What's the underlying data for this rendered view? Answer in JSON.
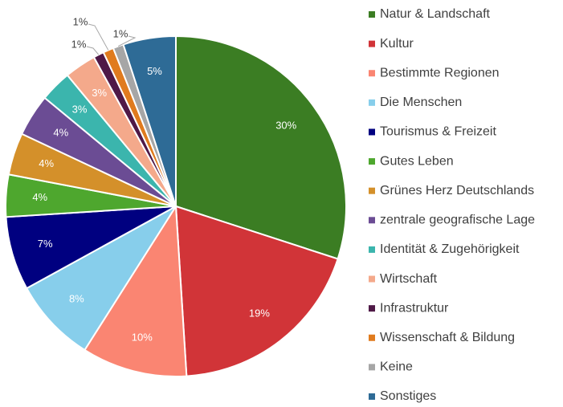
{
  "chart_data": {
    "type": "pie",
    "categories": [
      "Natur & Landschaft",
      "Kultur",
      "Bestimmte Regionen",
      "Die Menschen",
      "Tourismus & Freizeit",
      "Gutes Leben",
      "Grünes Herz Deutschlands",
      "zentrale geografische Lage",
      "Identität & Zugehörigkeit",
      "Wirtschaft",
      "Infrastruktur",
      "Wissenschaft & Bildung",
      "Keine",
      "Sonstiges"
    ],
    "values": [
      30,
      19,
      10,
      8,
      7,
      4,
      4,
      4,
      3,
      3,
      1,
      1,
      1,
      5
    ],
    "value_labels": [
      "30%",
      "19%",
      "10%",
      "8%",
      "7%",
      "4%",
      "4%",
      "4%",
      "3%",
      "3%",
      "1%",
      "1%",
      "1%",
      "5%"
    ],
    "colors": [
      "#3b7d23",
      "#d13438",
      "#fa8572",
      "#87ceeb",
      "#000080",
      "#4ea72e",
      "#d4902a",
      "#6b4c94",
      "#3bb5ad",
      "#f4a98b",
      "#4f1947",
      "#e07b1e",
      "#a6a6a6",
      "#2e6b96"
    ],
    "legend": "right"
  }
}
